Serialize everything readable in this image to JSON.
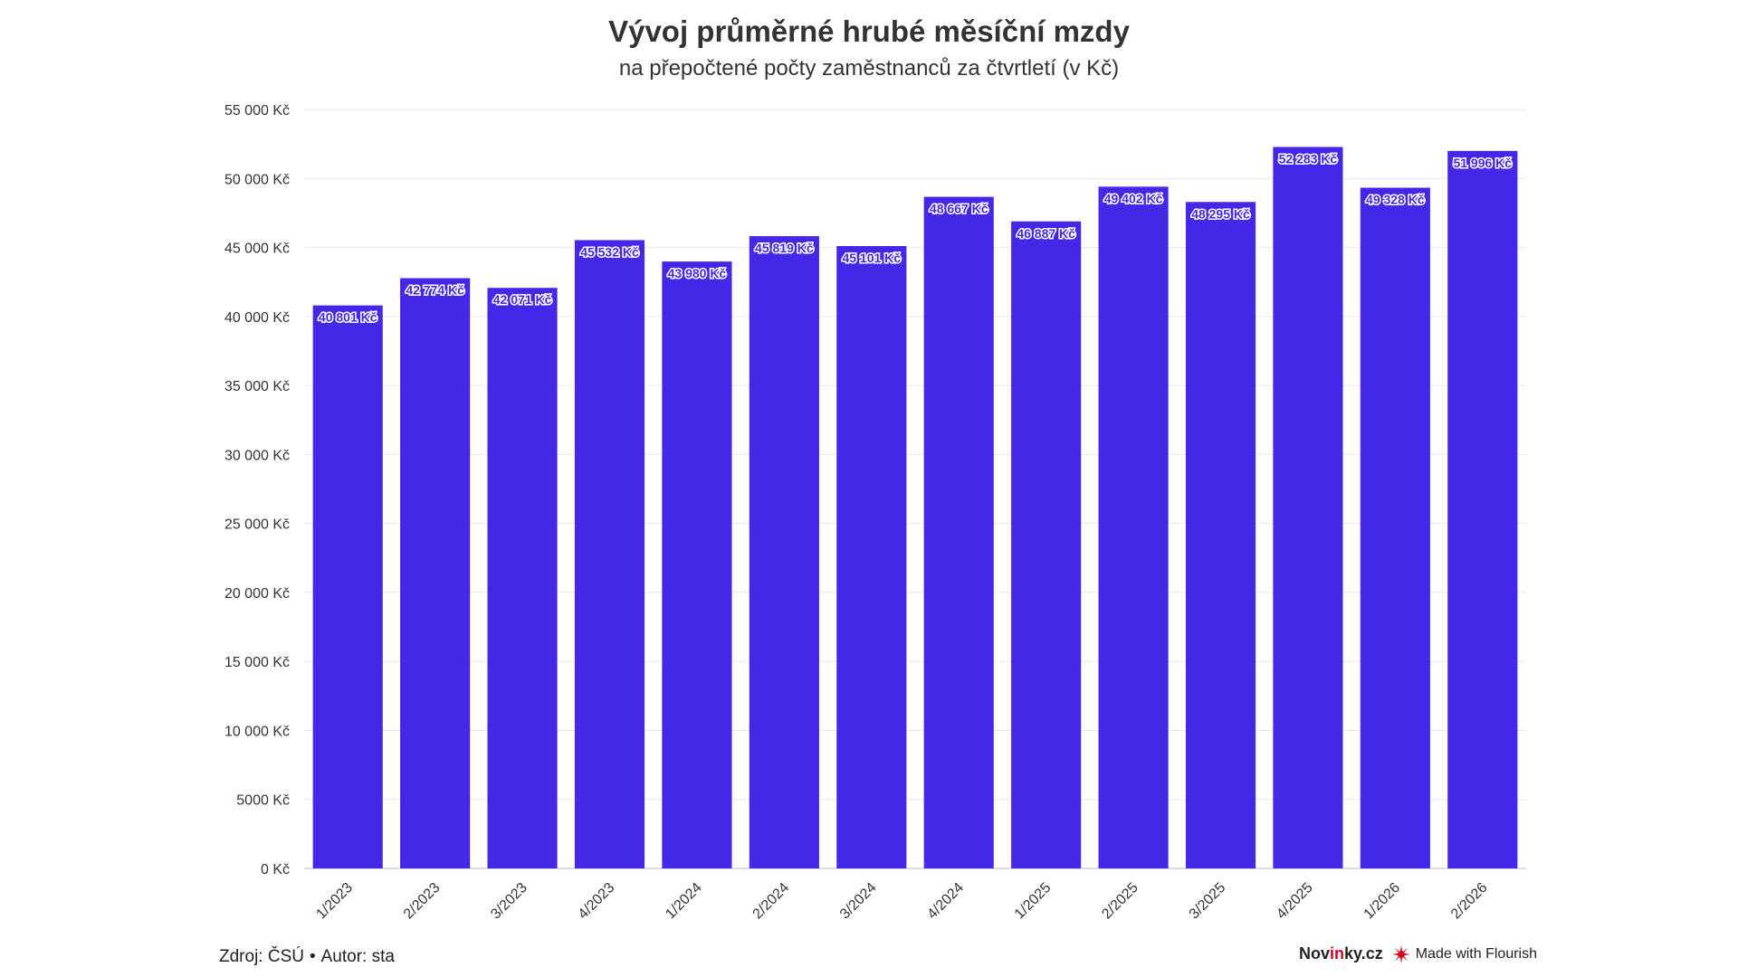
{
  "chart_data": {
    "type": "bar",
    "title": "Vývoj průměrné hrubé měsíční mzdy",
    "subtitle": "na přepočtené počty zaměstnanců za čtvrtletí (v Kč)",
    "categories": [
      "1/2023",
      "2/2023",
      "3/2023",
      "4/2023",
      "1/2024",
      "2/2024",
      "3/2024",
      "4/2024",
      "1/2025",
      "2/2025",
      "3/2025",
      "4/2025",
      "1/2026",
      "2/2026"
    ],
    "values": [
      40801,
      42774,
      42071,
      45532,
      43980,
      45819,
      45101,
      48667,
      46887,
      49402,
      48295,
      52283,
      49328,
      51996
    ],
    "value_labels": [
      "40 801 Kč",
      "42 774 Kč",
      "42 071 Kč",
      "45 532 Kč",
      "43 980 Kč",
      "45 819 Kč",
      "45 101 Kč",
      "48 667 Kč",
      "46 887 Kč",
      "49 402 Kč",
      "48 295 Kč",
      "52 283 Kč",
      "49 328 Kč",
      "51 996 Kč"
    ],
    "ylim": [
      0,
      55000
    ],
    "yticks": [
      0,
      5000,
      10000,
      15000,
      20000,
      25000,
      30000,
      35000,
      40000,
      45000,
      50000,
      55000
    ],
    "ytick_labels": [
      "0 Kč",
      "5000 Kč",
      "10 000 Kč",
      "15 000 Kč",
      "20 000 Kč",
      "25 000 Kč",
      "30 000 Kč",
      "35 000 Kč",
      "40 000 Kč",
      "45 000 Kč",
      "50 000 Kč",
      "55 000 Kč"
    ],
    "grid": true,
    "bar_color": "#4328e7"
  },
  "footer": {
    "source": "Zdroj: ČSÚ",
    "separator": "•",
    "author": "Autor: sta",
    "brand_part1": "Nov",
    "brand_accent": "in",
    "brand_part2": "ky.cz",
    "flourish_label": "Made with Flourish",
    "flourish_icon": "flourish-logo-icon",
    "accent_color": "#d0021b"
  }
}
